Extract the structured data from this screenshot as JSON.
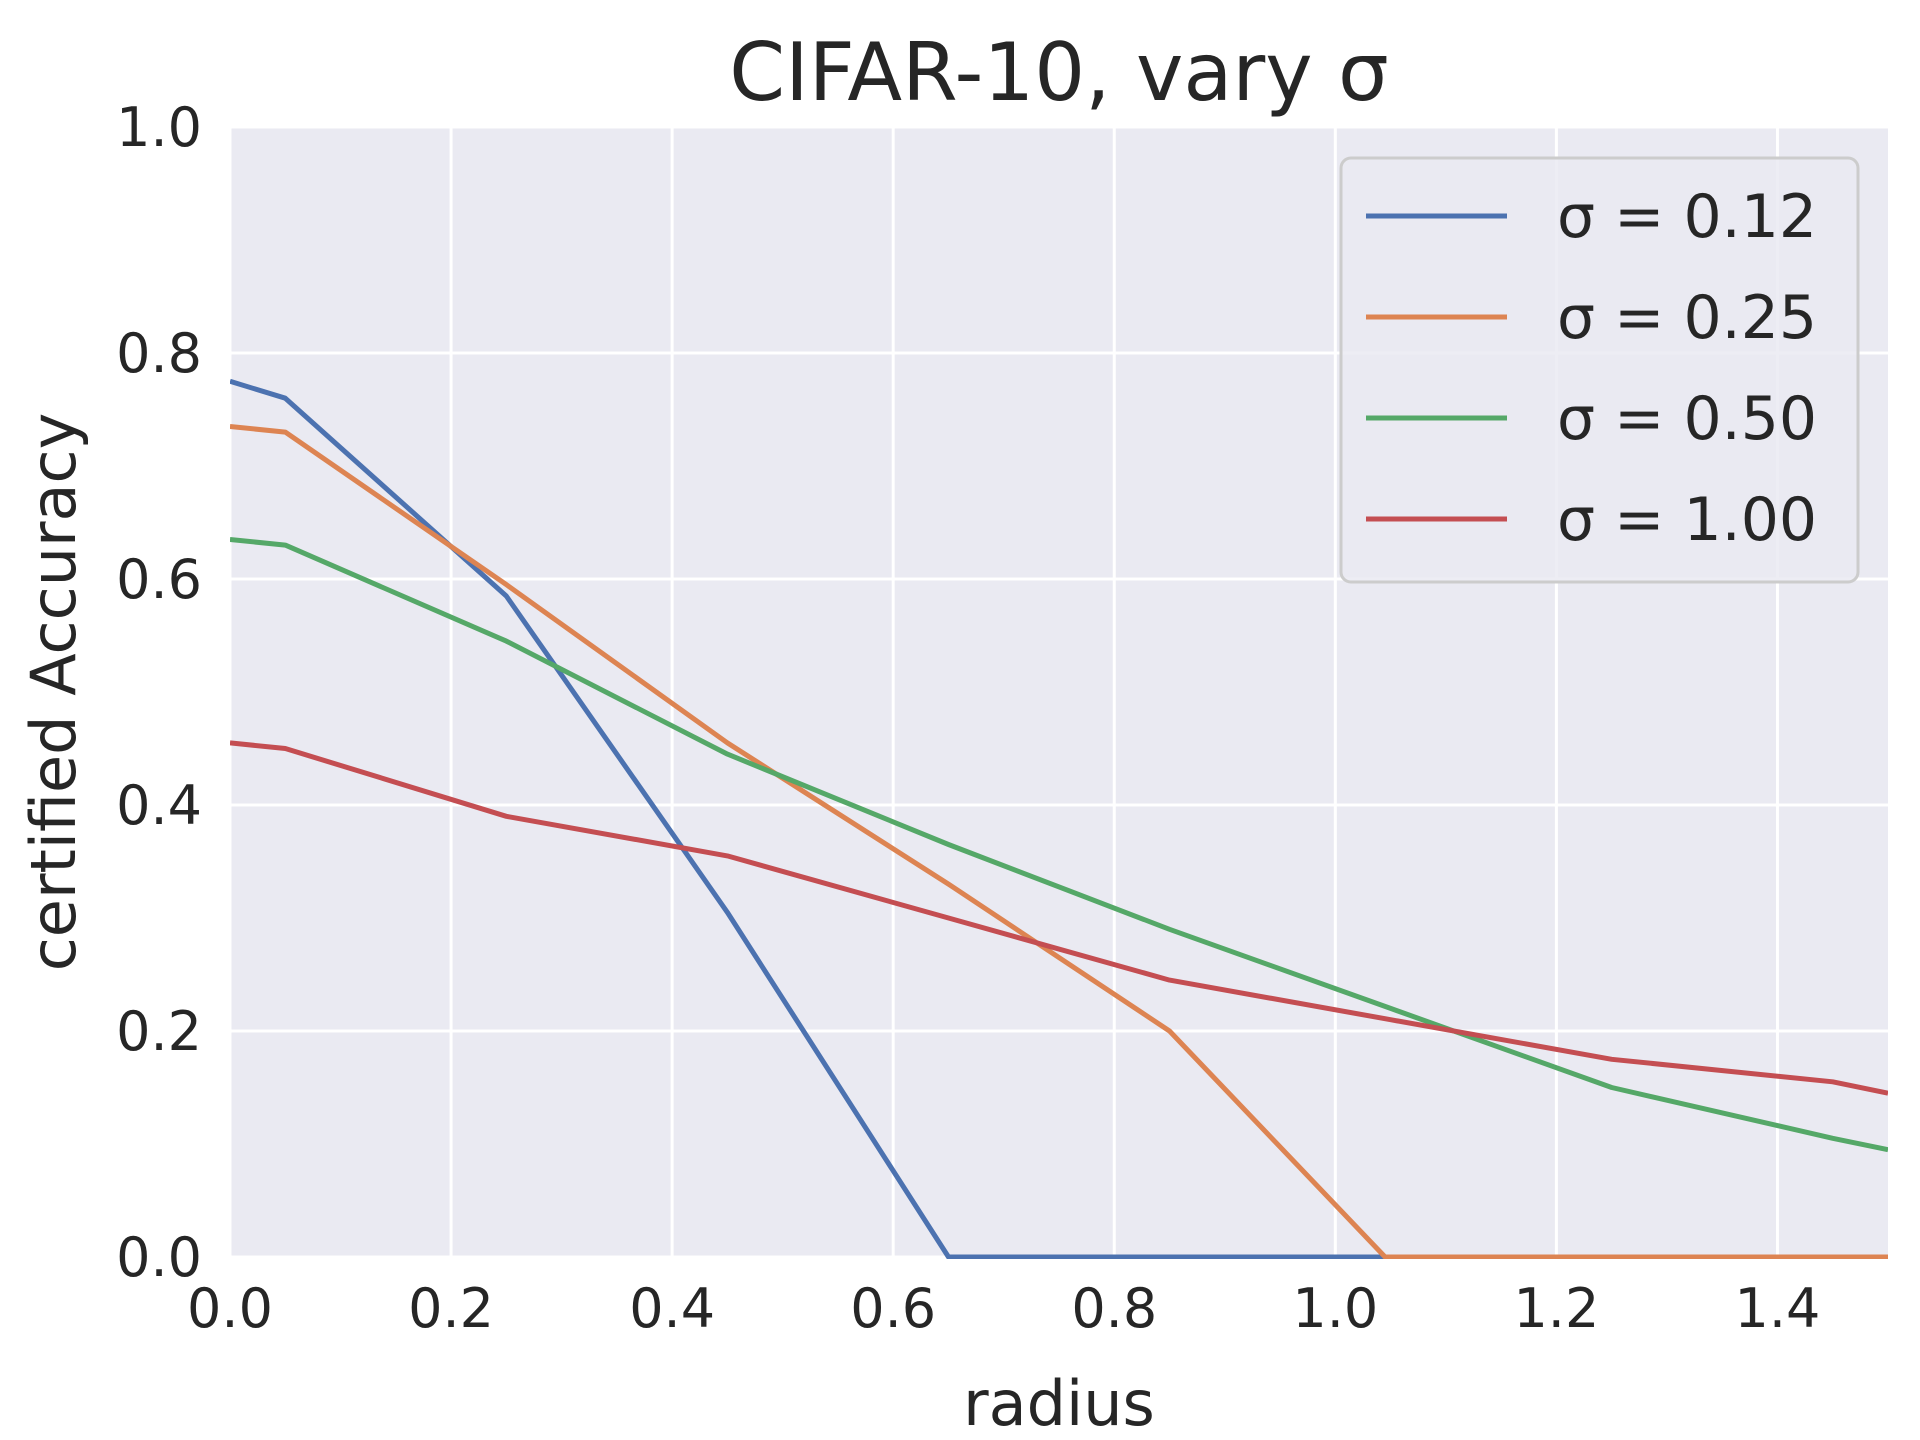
{
  "chart_data": {
    "type": "line",
    "title": "CIFAR-10, vary σ",
    "xlabel": "radius",
    "ylabel": "certified Accuracy",
    "xlim": [
      0.0,
      1.5
    ],
    "ylim": [
      0.0,
      1.0
    ],
    "xticks": [
      "0.0",
      "0.2",
      "0.4",
      "0.6",
      "0.8",
      "1.0",
      "1.2",
      "1.4"
    ],
    "yticks": [
      "0.0",
      "0.2",
      "0.4",
      "0.6",
      "0.8",
      "1.0"
    ],
    "grid": true,
    "legend_position": "top-right",
    "background": "#eaeaf2",
    "series": [
      {
        "name": "σ = 0.12",
        "color": "#4c72b0",
        "x": [
          0.0,
          0.05,
          0.25,
          0.45,
          0.65,
          0.85,
          1.05,
          1.25,
          1.45,
          1.5
        ],
        "y": [
          0.775,
          0.76,
          0.585,
          0.305,
          0.0,
          0.0,
          0.0,
          0.0,
          0.0,
          0.0
        ]
      },
      {
        "name": "σ = 0.25",
        "color": "#dd8452",
        "x": [
          0.0,
          0.05,
          0.25,
          0.45,
          0.65,
          0.85,
          1.045,
          1.25,
          1.45,
          1.5
        ],
        "y": [
          0.735,
          0.73,
          0.595,
          0.455,
          0.33,
          0.2,
          0.0,
          0.0,
          0.0,
          0.0
        ]
      },
      {
        "name": "σ = 0.50",
        "color": "#55a868",
        "x": [
          0.0,
          0.05,
          0.25,
          0.45,
          0.65,
          0.85,
          1.05,
          1.25,
          1.45,
          1.5
        ],
        "y": [
          0.635,
          0.63,
          0.545,
          0.445,
          0.365,
          0.29,
          0.22,
          0.15,
          0.105,
          0.095
        ]
      },
      {
        "name": "σ = 1.00",
        "color": "#c44e52",
        "x": [
          0.0,
          0.05,
          0.25,
          0.45,
          0.65,
          0.85,
          1.05,
          1.25,
          1.45,
          1.5
        ],
        "y": [
          0.455,
          0.45,
          0.39,
          0.355,
          0.3,
          0.245,
          0.21,
          0.175,
          0.155,
          0.145
        ]
      }
    ]
  }
}
